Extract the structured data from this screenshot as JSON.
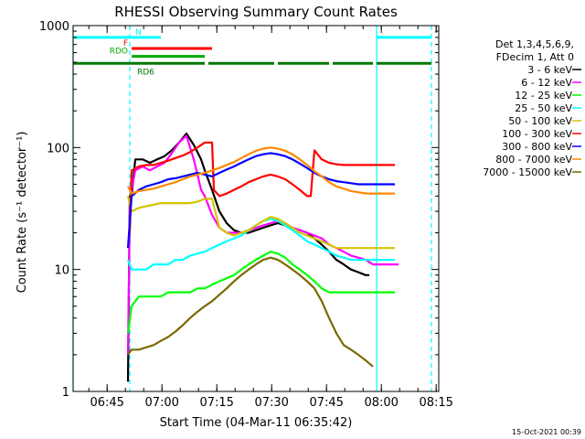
{
  "chart_data": {
    "type": "line",
    "title": "RHESSI Observing Summary Count Rates",
    "xlabel": "Start Time (04-Mar-11 06:35:42)",
    "ylabel": "Count Rate (s⁻¹ detector⁻¹)",
    "ylog": true,
    "ylim": [
      1,
      1000
    ],
    "xlim_minutes_after_start": [
      0,
      100
    ],
    "yticks": [
      {
        "value": 1,
        "label": "1"
      },
      {
        "value": 10,
        "label": "10"
      },
      {
        "value": 100,
        "label": "100"
      },
      {
        "value": 1000,
        "label": "1000"
      }
    ],
    "xticks": [
      {
        "minute": 9.3,
        "label": "06:45"
      },
      {
        "minute": 24.3,
        "label": "07:00"
      },
      {
        "minute": 39.3,
        "label": "07:15"
      },
      {
        "minute": 54.3,
        "label": "07:30"
      },
      {
        "minute": 69.3,
        "label": "07:45"
      },
      {
        "minute": 84.3,
        "label": "08:00"
      },
      {
        "minute": 99.3,
        "label": "08:15"
      }
    ],
    "legend": {
      "placement": "right",
      "header": [
        "Det 1,3,4,5,6,9,",
        "FDecim 1, Att 0"
      ],
      "entries": [
        {
          "label": "3 - 6 keV",
          "color": "#000000"
        },
        {
          "label": "6 - 12 keV",
          "color": "#ff00ff"
        },
        {
          "label": "12 - 25 keV",
          "color": "#00ff00"
        },
        {
          "label": "25 - 50 keV",
          "color": "#00ffff"
        },
        {
          "label": "50 - 100 keV",
          "color": "#d4c400"
        },
        {
          "label": "100 - 300 keV",
          "color": "#ff0000"
        },
        {
          "label": "300 - 800 keV",
          "color": "#0000ff"
        },
        {
          "label": "800 - 7000 keV",
          "color": "#ff8800"
        },
        {
          "label": "7000 - 15000 keV",
          "color": "#7a6a00"
        }
      ]
    },
    "series": [
      {
        "name": "3 - 6 keV",
        "color": "#000000",
        "x": [
          15,
          15.5,
          16,
          17,
          19,
          21,
          23,
          25,
          27,
          29,
          31,
          33,
          35,
          36,
          38,
          40,
          42,
          44,
          46,
          48,
          50,
          52,
          54,
          56,
          58,
          60,
          62,
          64,
          66,
          68,
          70,
          72,
          74,
          76,
          78,
          80,
          81
        ],
        "y": [
          1.2,
          40,
          40,
          80,
          80,
          75,
          80,
          85,
          95,
          110,
          130,
          105,
          80,
          65,
          45,
          30,
          24,
          21,
          20,
          20,
          21,
          22,
          23,
          24,
          23,
          22,
          21,
          20,
          18,
          16,
          14,
          12,
          11,
          10,
          9.5,
          9,
          9
        ]
      },
      {
        "name": "6 - 12 keV",
        "color": "#ff00ff",
        "x": [
          15,
          15.5,
          16,
          17,
          19,
          21,
          23,
          25,
          27,
          29,
          31,
          33,
          35,
          36,
          38,
          40,
          42,
          44,
          46,
          48,
          50,
          52,
          54,
          56,
          58,
          60,
          62,
          64,
          66,
          68,
          70,
          72,
          74,
          76,
          78,
          80,
          82,
          84,
          86,
          88,
          89
        ],
        "y": [
          2,
          30,
          45,
          65,
          70,
          65,
          70,
          75,
          90,
          110,
          125,
          80,
          45,
          40,
          28,
          22,
          20,
          20,
          20,
          21,
          22,
          23,
          24,
          25,
          24,
          22,
          21,
          20,
          19,
          18,
          16,
          15,
          14,
          13,
          12.5,
          12,
          11,
          11,
          11,
          11,
          11
        ]
      },
      {
        "name": "12 - 25 keV",
        "color": "#00ff00",
        "x": [
          15,
          16,
          18,
          20,
          22,
          24,
          26,
          28,
          30,
          32,
          34,
          36,
          38,
          40,
          42,
          44,
          46,
          48,
          50,
          52,
          54,
          56,
          58,
          60,
          62,
          64,
          66,
          68,
          70,
          72,
          74,
          76,
          78,
          80,
          82,
          84,
          86,
          88
        ],
        "y": [
          3,
          5,
          6,
          6,
          6,
          6,
          6.5,
          6.5,
          6.5,
          6.5,
          7,
          7,
          7.5,
          8,
          8.5,
          9,
          10,
          11,
          12,
          13,
          14,
          13.5,
          12.5,
          11,
          10,
          9,
          8,
          7,
          6.5,
          6.5,
          6.5,
          6.5,
          6.5,
          6.5,
          6.5,
          6.5,
          6.5,
          6.5
        ]
      },
      {
        "name": "25 - 50 keV",
        "color": "#00ffff",
        "x": [
          15,
          16,
          18,
          20,
          22,
          24,
          26,
          28,
          30,
          32,
          34,
          36,
          38,
          40,
          42,
          44,
          46,
          48,
          50,
          52,
          54,
          56,
          58,
          60,
          62,
          64,
          66,
          68,
          70,
          72,
          74,
          76,
          78,
          80,
          82,
          84,
          86,
          88
        ],
        "y": [
          12,
          10,
          10,
          10,
          11,
          11,
          11,
          12,
          12,
          13,
          13.5,
          14,
          15,
          16,
          17,
          18,
          19,
          21,
          23,
          25,
          26,
          25,
          23,
          21,
          19,
          17,
          16,
          15,
          14,
          13,
          12.5,
          12,
          12,
          12,
          12,
          12,
          12,
          12
        ]
      },
      {
        "name": "50 - 100 keV",
        "color": "#d4c400",
        "x": [
          15,
          16,
          18,
          20,
          22,
          24,
          26,
          28,
          30,
          32,
          34,
          36,
          38,
          40,
          42,
          44,
          46,
          48,
          50,
          52,
          54,
          56,
          58,
          60,
          62,
          64,
          66,
          68,
          70,
          72,
          74,
          76,
          78,
          80,
          82,
          84,
          86,
          88
        ],
        "y": [
          40,
          30,
          32,
          33,
          34,
          35,
          35,
          35,
          35,
          35,
          36,
          38,
          38,
          22,
          20,
          19,
          20,
          21,
          23,
          25,
          27,
          26,
          24,
          22,
          20,
          19,
          18,
          17,
          16,
          15,
          15,
          15,
          15,
          15,
          15,
          15,
          15,
          15
        ]
      },
      {
        "name": "100 - 300 keV",
        "color": "#ff0000",
        "x": [
          15,
          15.5,
          16,
          18,
          20,
          22,
          24,
          26,
          28,
          30,
          32,
          34,
          36,
          38,
          38.5,
          40,
          42,
          44,
          46,
          48,
          50,
          52,
          54,
          56,
          58,
          60,
          62,
          64,
          65,
          66,
          68,
          70,
          72,
          74,
          76,
          78,
          80,
          82,
          84,
          86,
          88
        ],
        "y": [
          20,
          20,
          65,
          70,
          72,
          72,
          75,
          78,
          82,
          86,
          92,
          100,
          110,
          110,
          45,
          40,
          42,
          45,
          48,
          52,
          55,
          58,
          60,
          58,
          55,
          50,
          45,
          40,
          40,
          95,
          80,
          75,
          73,
          72,
          72,
          72,
          72,
          72,
          72,
          72,
          72
        ]
      },
      {
        "name": "300 - 800 keV",
        "color": "#0000ff",
        "x": [
          15,
          16,
          18,
          20,
          22,
          24,
          26,
          28,
          30,
          32,
          34,
          36,
          38,
          40,
          42,
          44,
          46,
          48,
          50,
          52,
          54,
          56,
          58,
          60,
          62,
          64,
          66,
          68,
          70,
          72,
          74,
          76,
          78,
          80,
          82,
          84,
          86,
          88
        ],
        "y": [
          15,
          40,
          45,
          48,
          50,
          52,
          55,
          56,
          58,
          60,
          62,
          60,
          58,
          62,
          66,
          70,
          75,
          80,
          85,
          88,
          90,
          88,
          85,
          80,
          74,
          68,
          62,
          58,
          55,
          53,
          52,
          51,
          50,
          50,
          50,
          50,
          50,
          50
        ]
      },
      {
        "name": "800 - 7000 keV",
        "color": "#ff8800",
        "x": [
          15,
          16,
          18,
          20,
          22,
          24,
          26,
          28,
          30,
          32,
          34,
          36,
          38,
          40,
          42,
          44,
          46,
          48,
          50,
          52,
          54,
          56,
          58,
          60,
          62,
          64,
          66,
          68,
          70,
          72,
          74,
          76,
          78,
          80,
          82,
          84,
          86,
          88
        ],
        "y": [
          48,
          42,
          44,
          45,
          46,
          48,
          50,
          52,
          55,
          58,
          60,
          62,
          65,
          68,
          72,
          76,
          82,
          88,
          94,
          98,
          100,
          98,
          94,
          88,
          80,
          72,
          64,
          58,
          52,
          48,
          46,
          44,
          43,
          42,
          42,
          42,
          42,
          42
        ]
      },
      {
        "name": "7000 - 15000 keV",
        "color": "#7a6a00",
        "x": [
          15,
          16,
          18,
          20,
          22,
          24,
          26,
          28,
          30,
          32,
          34,
          36,
          38,
          40,
          42,
          44,
          46,
          48,
          50,
          52,
          54,
          56,
          58,
          60,
          62,
          64,
          66,
          68,
          70,
          72,
          74,
          76,
          78,
          80,
          82
        ],
        "y": [
          2,
          2.2,
          2.2,
          2.3,
          2.4,
          2.6,
          2.8,
          3.1,
          3.5,
          4,
          4.5,
          5,
          5.5,
          6.2,
          7,
          8,
          9,
          10,
          11,
          12,
          12.5,
          12,
          11,
          10,
          9,
          8,
          7,
          5.5,
          4,
          3,
          2.4,
          2.2,
          2,
          1.8,
          1.6
        ]
      }
    ],
    "states": [
      {
        "label": "N",
        "color": "#00ffff",
        "y": 800,
        "segments": [
          [
            0,
            24
          ],
          [
            83,
            98
          ]
        ]
      },
      {
        "label": "F",
        "color": "#ff0000",
        "y": 650,
        "segments": [
          [
            16,
            38
          ]
        ]
      },
      {
        "label": "RDO",
        "color": "#00aa00",
        "y": 560,
        "segments": [
          [
            16,
            36
          ]
        ]
      },
      {
        "label": "RD6",
        "color": "#007700",
        "y": 490,
        "segments": [
          [
            0,
            36
          ],
          [
            37,
            55
          ],
          [
            56,
            70
          ],
          [
            71,
            82
          ],
          [
            83,
            98
          ]
        ]
      }
    ],
    "vertical_lines": [
      {
        "minute": 0,
        "style": "solid",
        "color": "#00ffff"
      },
      {
        "minute": 15.5,
        "style": "dashed",
        "color": "#00ffff"
      },
      {
        "minute": 83,
        "style": "solid",
        "color": "#00ffff"
      },
      {
        "minute": 98,
        "style": "dashed",
        "color": "#00ffff"
      }
    ]
  },
  "footer": {
    "timestamp": "15-Oct-2021 00:39"
  }
}
